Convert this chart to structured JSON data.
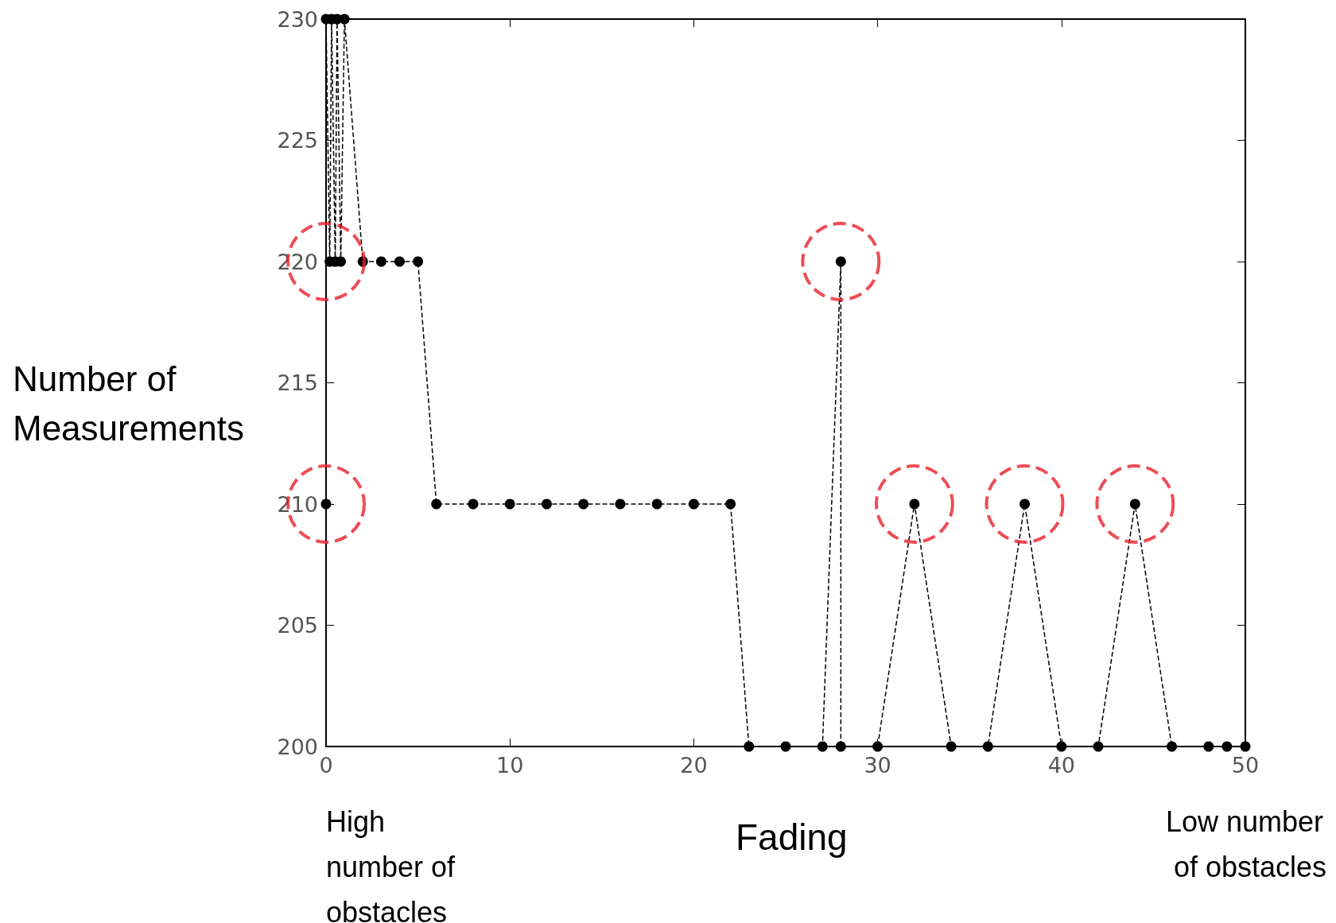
{
  "chart_data": {
    "type": "line",
    "xlabel": "Fading",
    "ylabel": "Number of Measurements",
    "annotations": [
      "High number of obstacles",
      "Low number of obstacles"
    ],
    "xlim": [
      0,
      50
    ],
    "xticks": [
      0,
      10,
      20,
      30,
      40,
      50
    ],
    "ylim": [
      200,
      230
    ],
    "yticks": [
      200,
      205,
      210,
      215,
      220,
      225,
      230
    ],
    "grid": false,
    "marker": "circle",
    "line_style": "dashed",
    "series": [
      {
        "color": "#000000",
        "x": [
          0,
          0,
          0.2,
          0.3,
          0.5,
          0.6,
          0.8,
          1,
          2,
          3,
          4,
          5,
          6,
          8,
          10,
          12,
          14,
          16,
          18,
          20,
          22,
          23,
          25,
          27,
          28,
          28,
          30,
          32,
          34,
          36,
          38,
          40,
          42,
          44,
          46,
          48,
          49,
          50
        ],
        "values": [
          210,
          230,
          220,
          230,
          220,
          230,
          220,
          230,
          220,
          220,
          220,
          220,
          210,
          210,
          210,
          210,
          210,
          210,
          210,
          210,
          210,
          200,
          200,
          200,
          220,
          200,
          200,
          210,
          200,
          200,
          210,
          200,
          200,
          210,
          200,
          200,
          200,
          200
        ]
      },
      {
        "type": "scatter",
        "color": "#e8202a",
        "marker": "circle",
        "line_style": "dashed",
        "x": [
          0,
          0,
          28,
          32,
          38,
          44
        ],
        "values": [
          220,
          210,
          220,
          210,
          210,
          210
        ]
      }
    ]
  }
}
